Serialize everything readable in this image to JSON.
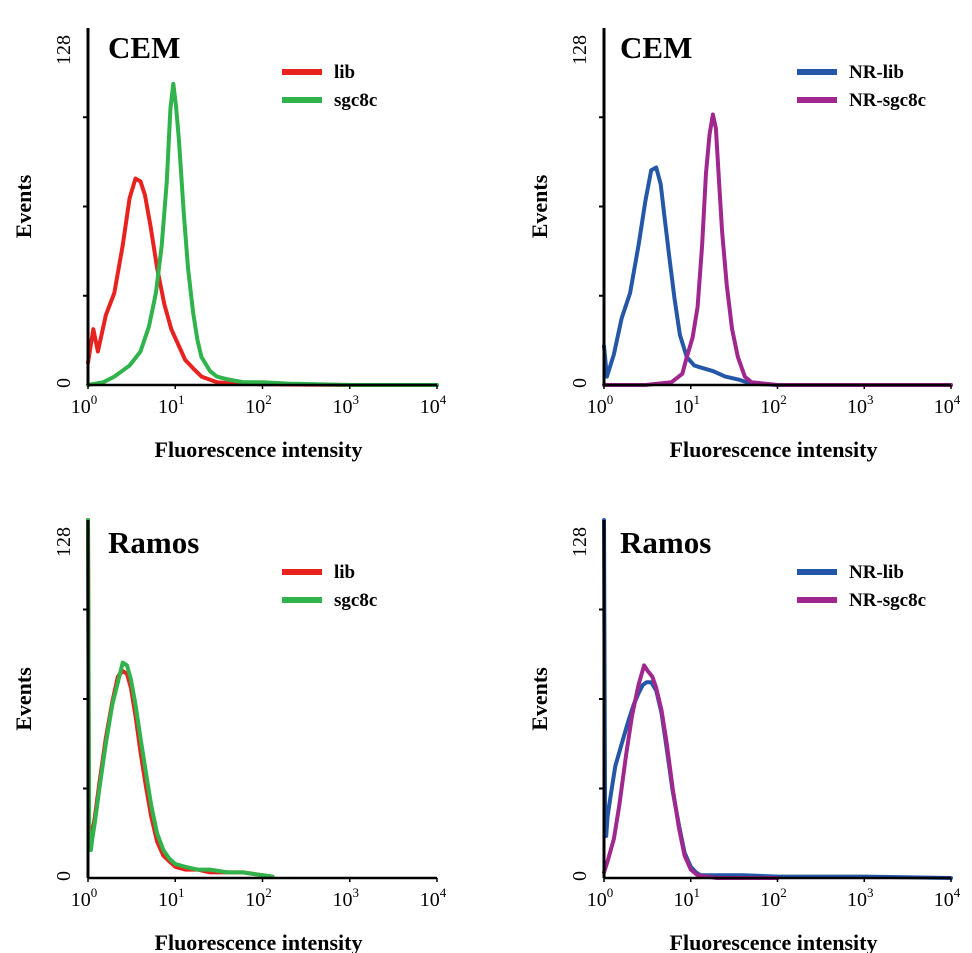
{
  "chart_data": [
    {
      "type": "line",
      "title": "CEM",
      "xlabel": "Fluorescence intensity",
      "ylabel": "Events",
      "xscale": "log",
      "xlim": [
        1,
        10000
      ],
      "ylim": [
        0,
        128
      ],
      "yticks": [
        "0",
        "128"
      ],
      "xticks": [
        {
          "base": "10",
          "exp": "0"
        },
        {
          "base": "10",
          "exp": "1"
        },
        {
          "base": "10",
          "exp": "2"
        },
        {
          "base": "10",
          "exp": "3"
        },
        {
          "base": "10",
          "exp": "4"
        }
      ],
      "legend": "top-right",
      "series": [
        {
          "name": "lib",
          "color": "#e8231f",
          "x": [
            1,
            1.15,
            1.3,
            1.6,
            2.0,
            2.5,
            3.0,
            3.5,
            4.0,
            4.5,
            5.2,
            6.2,
            7.5,
            9.0,
            11,
            13,
            16,
            20,
            30,
            50,
            100,
            1000,
            10000
          ],
          "y": [
            8,
            20,
            12,
            25,
            33,
            50,
            67,
            74,
            73,
            68,
            57,
            42,
            29,
            20,
            14,
            9,
            6,
            3,
            1,
            0.5,
            0.3,
            0,
            0
          ]
        },
        {
          "name": "sgc8c",
          "color": "#2fb34a",
          "x": [
            1,
            1.5,
            2,
            3,
            4,
            5,
            6,
            7,
            8,
            8.8,
            9.5,
            10.2,
            11,
            12.5,
            14,
            16,
            18,
            20,
            25,
            30,
            40,
            60,
            100,
            200,
            1000,
            10000
          ],
          "y": [
            0,
            1,
            3,
            7,
            12,
            21,
            33,
            50,
            73,
            99,
            108,
            100,
            88,
            62,
            42,
            26,
            16,
            10,
            5,
            3,
            2,
            1,
            1,
            0.5,
            0,
            0
          ]
        }
      ]
    },
    {
      "type": "line",
      "title": "CEM",
      "xlabel": "Fluorescence intensity",
      "ylabel": "Events",
      "xscale": "log",
      "xlim": [
        1,
        10000
      ],
      "ylim": [
        0,
        128
      ],
      "yticks": [
        "0",
        "128"
      ],
      "xticks": [
        {
          "base": "10",
          "exp": "0"
        },
        {
          "base": "10",
          "exp": "1"
        },
        {
          "base": "10",
          "exp": "2"
        },
        {
          "base": "10",
          "exp": "3"
        },
        {
          "base": "10",
          "exp": "4"
        }
      ],
      "legend": "top-right",
      "series": [
        {
          "name": "NR-lib",
          "color": "#2557a8",
          "x": [
            1,
            1.08,
            1.3,
            1.6,
            2.0,
            2.5,
            3.0,
            3.5,
            4.0,
            4.5,
            5.0,
            5.7,
            6.5,
            7.5,
            9,
            11,
            14,
            18,
            25,
            35,
            50,
            100,
            1000,
            10000
          ],
          "y": [
            14,
            3,
            11,
            24,
            33,
            50,
            66,
            77,
            78,
            72,
            60,
            45,
            31,
            18,
            10,
            7,
            6,
            5,
            3,
            2,
            0.5,
            0,
            0,
            0
          ]
        },
        {
          "name": "NR-sgc8c",
          "color": "#a0278e",
          "x": [
            1,
            3,
            6,
            8,
            9,
            10.5,
            12,
            13.5,
            15,
            16.5,
            18,
            19.5,
            21,
            23,
            26,
            30,
            35,
            42,
            50,
            100,
            1000,
            10000
          ],
          "y": [
            0,
            0,
            1,
            4,
            10,
            17,
            28,
            50,
            76,
            90,
            97,
            92,
            75,
            55,
            36,
            20,
            10,
            3,
            1,
            0,
            0,
            0
          ]
        }
      ]
    },
    {
      "type": "line",
      "title": "Ramos",
      "xlabel": "Fluorescence intensity",
      "ylabel": "Events",
      "xscale": "log",
      "xlim": [
        1,
        10000
      ],
      "ylim": [
        0,
        128
      ],
      "yticks": [
        "0",
        "128"
      ],
      "xticks": [
        {
          "base": "10",
          "exp": "0"
        },
        {
          "base": "10",
          "exp": "1"
        },
        {
          "base": "10",
          "exp": "2"
        },
        {
          "base": "10",
          "exp": "3"
        },
        {
          "base": "10",
          "exp": "4"
        }
      ],
      "legend": "top-right",
      "series": [
        {
          "name": "lib",
          "color": "#e8231f",
          "x": [
            1,
            1.03,
            1.08,
            1.12,
            1.2,
            1.35,
            1.6,
            1.9,
            2.2,
            2.5,
            2.8,
            3.1,
            3.5,
            4.0,
            4.6,
            5.3,
            6.2,
            7.3,
            8.5,
            10,
            13,
            18,
            25,
            40,
            60,
            100,
            130
          ],
          "y": [
            128,
            20,
            12,
            16,
            22,
            34,
            50,
            63,
            72,
            74,
            73,
            68,
            58,
            45,
            33,
            22,
            13,
            8,
            6,
            4,
            3,
            3,
            2,
            2,
            2,
            1,
            0.5
          ]
        },
        {
          "name": "sgc8c",
          "color": "#2fb34a",
          "x": [
            1,
            1.03,
            1.08,
            1.12,
            1.2,
            1.35,
            1.6,
            1.9,
            2.2,
            2.5,
            2.8,
            3.1,
            3.5,
            4.0,
            4.6,
            5.3,
            6.2,
            7.3,
            8.5,
            10,
            13,
            18,
            25,
            40,
            60,
            100,
            130
          ],
          "y": [
            128,
            16,
            10,
            14,
            20,
            32,
            48,
            62,
            70,
            77,
            76,
            71,
            62,
            50,
            38,
            26,
            16,
            10,
            7,
            5,
            4,
            3,
            3,
            2,
            2,
            1,
            0.5
          ]
        }
      ]
    },
    {
      "type": "line",
      "title": "Ramos",
      "xlabel": "Fluorescence intensity",
      "ylabel": "Events",
      "xscale": "log",
      "xlim": [
        1,
        10000
      ],
      "ylim": [
        0,
        128
      ],
      "yticks": [
        "0",
        "128"
      ],
      "xticks": [
        {
          "base": "10",
          "exp": "0"
        },
        {
          "base": "10",
          "exp": "1"
        },
        {
          "base": "10",
          "exp": "2"
        },
        {
          "base": "10",
          "exp": "3"
        },
        {
          "base": "10",
          "exp": "4"
        }
      ],
      "legend": "top-right",
      "series": [
        {
          "name": "NR-lib",
          "color": "#2557a8",
          "x": [
            1,
            1.03,
            1.06,
            1.1,
            1.2,
            1.35,
            1.6,
            1.9,
            2.2,
            2.5,
            2.8,
            3.1,
            3.5,
            4.0,
            4.6,
            5.3,
            6.2,
            7.3,
            8.5,
            10,
            11.5,
            13,
            15,
            20,
            40,
            100,
            1000,
            10000
          ],
          "y": [
            128,
            25,
            15,
            22,
            30,
            40,
            48,
            56,
            62,
            66,
            69,
            70,
            70,
            67,
            59,
            46,
            31,
            19,
            9,
            4,
            2,
            1,
            1,
            1,
            1,
            0.5,
            0.5,
            0
          ]
        },
        {
          "name": "NR-sgc8c",
          "color": "#a0278e",
          "x": [
            1,
            1.1,
            1.3,
            1.5,
            1.8,
            2.1,
            2.5,
            2.9,
            3.2,
            3.6,
            4.0,
            4.6,
            5.3,
            6.2,
            7.3,
            8.5,
            10,
            12,
            15,
            20,
            50,
            100
          ],
          "y": [
            2,
            6,
            14,
            26,
            44,
            58,
            69,
            76,
            74,
            72,
            68,
            60,
            48,
            32,
            18,
            8,
            3,
            1,
            0.5,
            0,
            0,
            0
          ]
        }
      ]
    }
  ]
}
